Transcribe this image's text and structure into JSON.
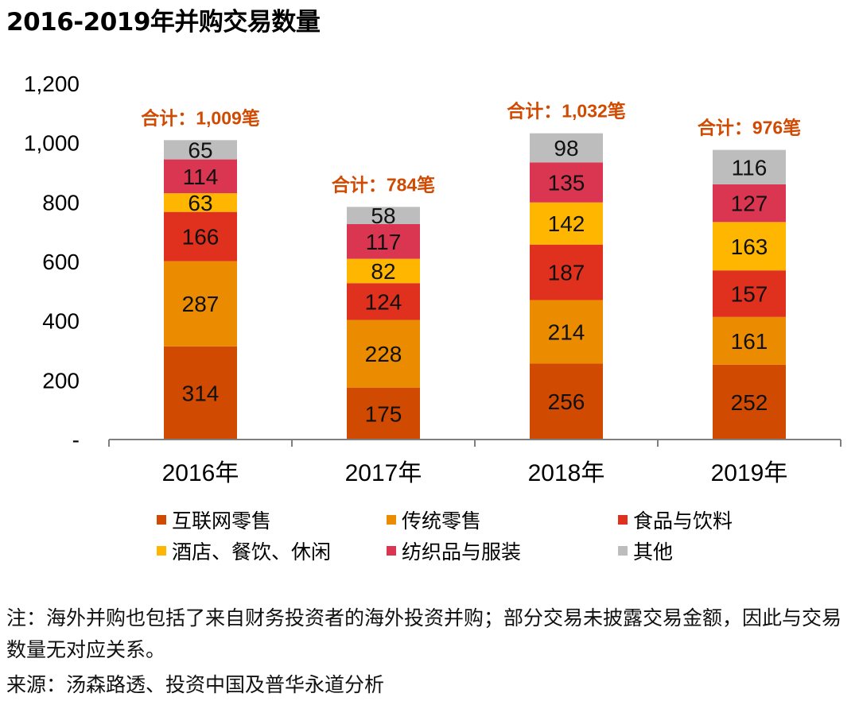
{
  "chart_data": {
    "type": "bar",
    "stacked": true,
    "title": "2016-2019年并购交易数量",
    "categories": [
      "2016年",
      "2017年",
      "2018年",
      "2019年"
    ],
    "series": [
      {
        "name": "互联网零售",
        "color": "#d04a02",
        "values": [
          314,
          175,
          256,
          252
        ]
      },
      {
        "name": "传统零售",
        "color": "#eb8c00",
        "values": [
          287,
          228,
          214,
          161
        ]
      },
      {
        "name": "食品与饮料",
        "color": "#e0301e",
        "values": [
          166,
          124,
          187,
          157
        ]
      },
      {
        "name": "酒店、餐饮、休闲",
        "color": "#ffb600",
        "values": [
          63,
          82,
          142,
          163
        ]
      },
      {
        "name": "纺织品与服装",
        "color": "#db3651",
        "values": [
          114,
          117,
          135,
          127
        ]
      },
      {
        "name": "其他",
        "color": "#bdbdbd",
        "values": [
          65,
          58,
          98,
          116
        ]
      }
    ],
    "totals": [
      "合计：1,009笔",
      "合计：784笔",
      "合计：1,032笔",
      "合计：976笔"
    ],
    "total_color": "#d04a02",
    "yticks": [
      "-",
      "200",
      "400",
      "600",
      "800",
      "1,000",
      "1,200"
    ],
    "ylim": [
      0,
      1200
    ],
    "legend_position": "bottom"
  },
  "footer": {
    "note": "注：海外并购也包括了来自财务投资者的海外投资并购；部分交易未披露交易金额，因此与交易数量无对应关系。",
    "source": "来源：汤森路透、投资中国及普华永道分析"
  }
}
